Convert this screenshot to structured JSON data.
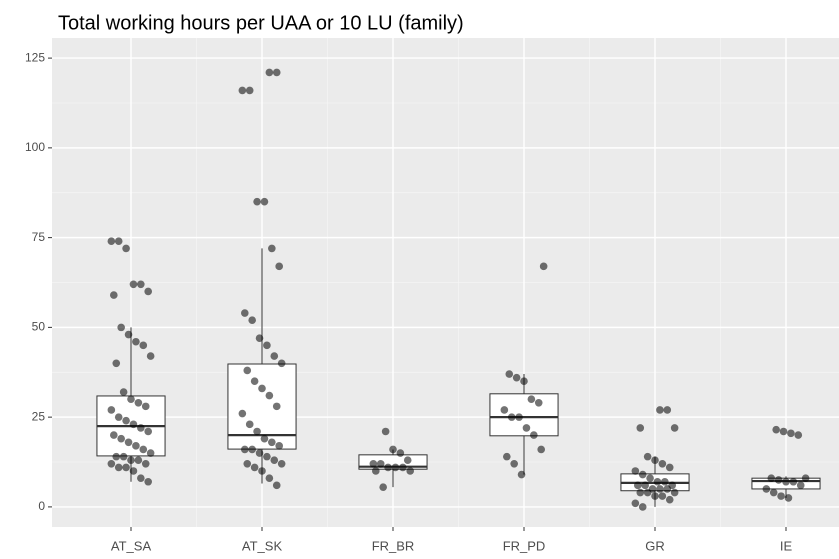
{
  "chart_data": {
    "type": "boxplot",
    "title": "Total working hours per UAA or 10 LU (family)",
    "categories": [
      "AT_SA",
      "AT_SK",
      "FR_BR",
      "FR_PD",
      "GR",
      "IE"
    ],
    "boxes": [
      {
        "whislo": 7,
        "q1": 14.2,
        "med": 22.5,
        "q3": 30.9,
        "whishi": 50
      },
      {
        "whislo": 6.5,
        "q1": 16.1,
        "med": 20,
        "q3": 39.8,
        "whishi": 72
      },
      {
        "whislo": 5.5,
        "q1": 10.5,
        "med": 11.2,
        "q3": 14.5,
        "whishi": 16
      },
      {
        "whislo": 9,
        "q1": 19.8,
        "med": 25,
        "q3": 31.5,
        "whishi": 37
      },
      {
        "whislo": 0,
        "q1": 4.5,
        "med": 6.7,
        "q3": 9.2,
        "whishi": 14
      },
      {
        "whislo": 2.5,
        "q1": 5,
        "med": 7.2,
        "q3": 8,
        "whishi": 8.5
      }
    ],
    "points": [
      [
        74,
        74,
        72,
        62,
        62,
        60,
        59,
        50,
        48,
        46,
        45,
        42,
        40,
        32,
        30,
        29,
        28,
        27,
        25,
        24,
        23,
        22,
        21,
        20,
        19,
        18,
        17,
        16,
        15,
        14,
        14,
        13,
        13,
        12,
        12,
        11,
        11,
        10,
        8,
        7
      ],
      [
        121,
        121,
        116,
        116,
        85,
        85,
        72,
        67,
        54,
        52,
        47,
        45,
        42,
        40,
        38,
        35,
        33,
        31,
        28,
        26,
        23,
        21,
        19,
        18,
        17,
        16,
        16,
        15,
        14,
        13,
        12,
        12,
        11,
        10,
        8,
        6
      ],
      [
        21,
        16,
        15,
        13,
        12,
        12,
        11,
        11,
        11,
        10,
        10,
        5.5
      ],
      [
        67,
        37,
        36,
        35,
        30,
        29,
        27,
        25,
        25,
        22,
        20,
        16,
        14,
        12,
        9
      ],
      [
        27,
        27,
        22,
        22,
        14,
        13,
        12,
        11,
        10,
        9,
        8,
        7,
        7,
        6,
        6,
        6,
        5,
        5,
        5,
        4,
        4,
        4,
        3,
        3,
        2,
        1,
        0
      ],
      [
        21.5,
        21,
        20.5,
        20,
        8,
        8,
        7.5,
        7,
        7,
        6,
        5,
        4,
        3,
        2.5
      ]
    ],
    "ylim": [
      -5.6,
      130.6
    ],
    "yticks": [
      0,
      25,
      50,
      75,
      100,
      125
    ],
    "grid": true
  }
}
